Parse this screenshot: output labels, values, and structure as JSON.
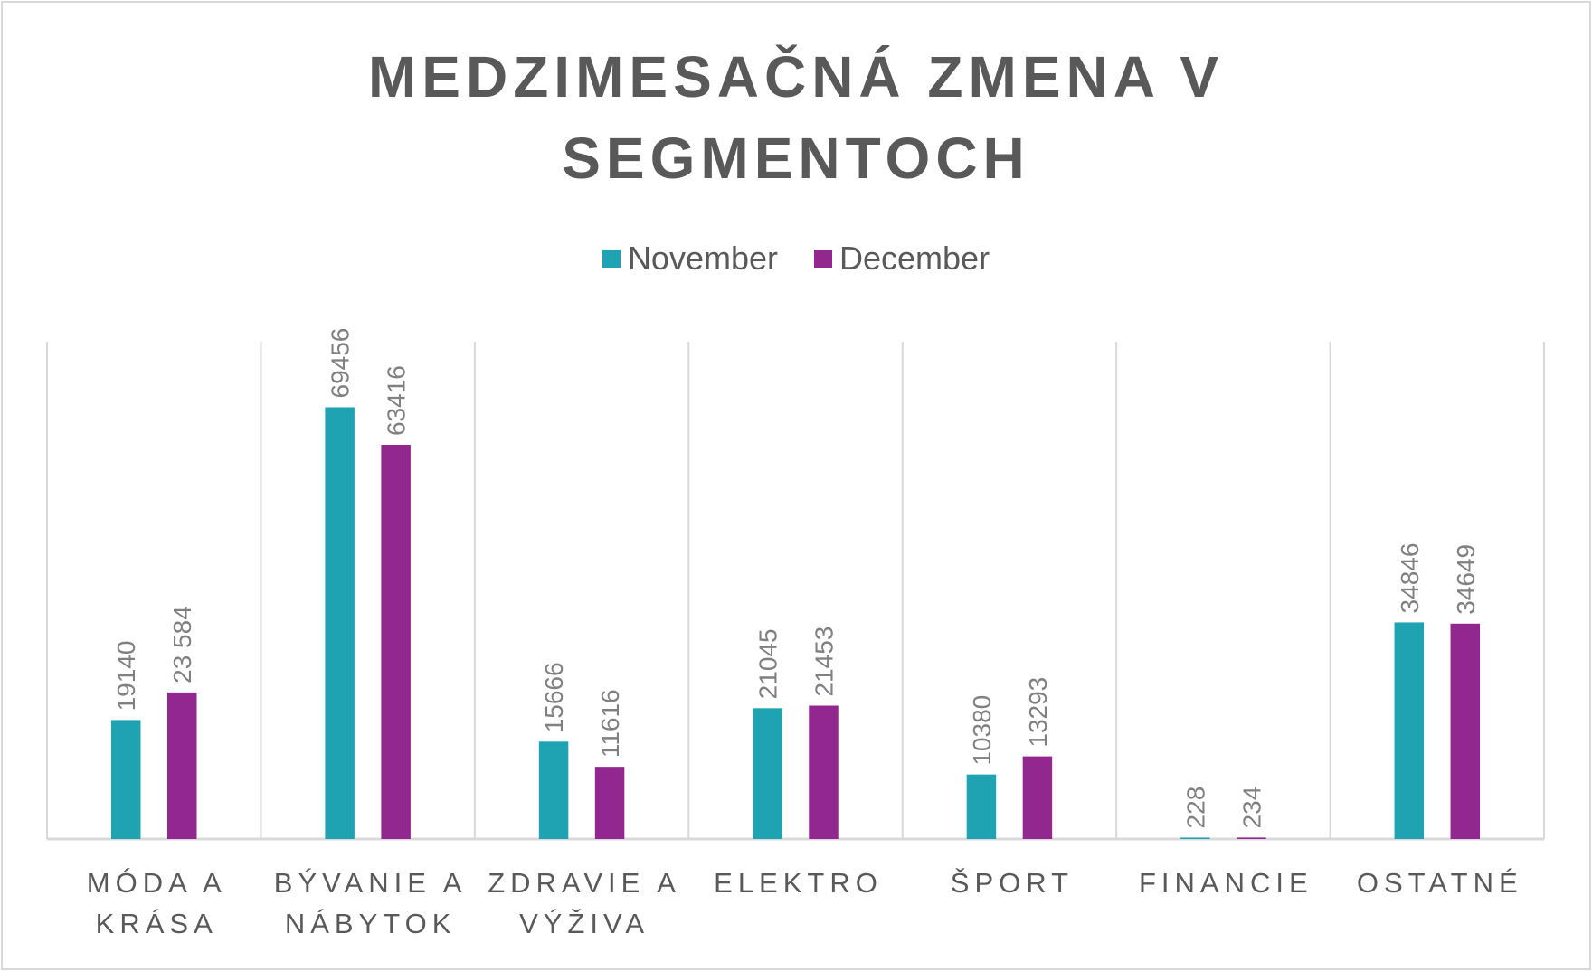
{
  "chart_data": {
    "type": "bar",
    "title": "MEDZIMESAČNÁ ZMENA V SEGMENTOCH",
    "title_lines": [
      "MEDZIMESAČNÁ ZMENA V",
      "SEGMENTOCH"
    ],
    "categories": [
      [
        "MÓDA A",
        "KRÁSA"
      ],
      [
        "BÝVANIE A",
        "NÁBYTOK"
      ],
      [
        "ZDRAVIE A",
        "VÝŽIVA"
      ],
      [
        "ELEKTRO"
      ],
      [
        "ŠPORT"
      ],
      [
        "FINANCIE"
      ],
      [
        "OSTATNÉ"
      ]
    ],
    "series": [
      {
        "name": "November",
        "color": "#1fa3b3",
        "values": [
          19140,
          69456,
          15666,
          21045,
          10380,
          228,
          34846
        ],
        "labels": [
          "19140",
          "69456",
          "15666",
          "21045",
          "10380",
          "228",
          "34846"
        ]
      },
      {
        "name": "December",
        "color": "#92278f",
        "values": [
          23584,
          63416,
          11616,
          21453,
          13293,
          234,
          34649
        ],
        "labels": [
          "23 584",
          "63416",
          "11616",
          "21453",
          "13293",
          "234",
          "34649"
        ]
      }
    ],
    "ylim": [
      0,
      80000
    ],
    "xlabel": "",
    "ylabel": "",
    "legend": "top-center",
    "grid": "vertical category separators"
  }
}
